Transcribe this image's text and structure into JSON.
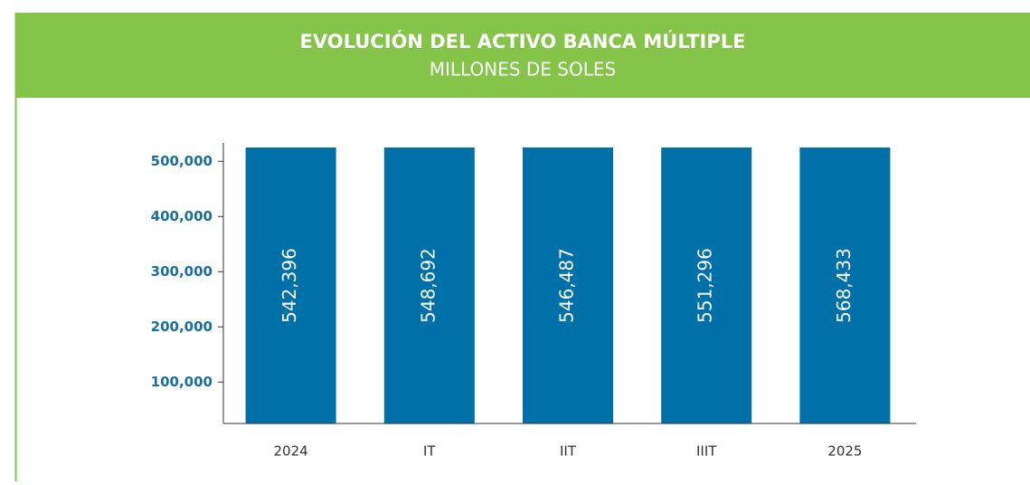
{
  "chart_data": {
    "type": "bar",
    "title": "EVOLUCIÓN DEL ACTIVO BANCA MÚLTIPLE",
    "subtitle": "MILLONES DE SOLES",
    "categories": [
      "2024",
      "IT",
      "IIT",
      "IIIT",
      "2025"
    ],
    "values": [
      542396,
      548692,
      546487,
      551296,
      568433
    ],
    "value_labels": [
      "542,396",
      "548,692",
      "546,487",
      "551,296",
      "568,433"
    ],
    "color": "#0070a8",
    "ylim": [
      25000,
      525000
    ],
    "yticks": [
      {
        "value": 100000,
        "label": "100,000"
      },
      {
        "value": 200000,
        "label": "200,000"
      },
      {
        "value": 300000,
        "label": "300,000"
      },
      {
        "value": 400000,
        "label": "400,000"
      },
      {
        "value": 500000,
        "label": "500,000"
      }
    ],
    "grid": false
  }
}
